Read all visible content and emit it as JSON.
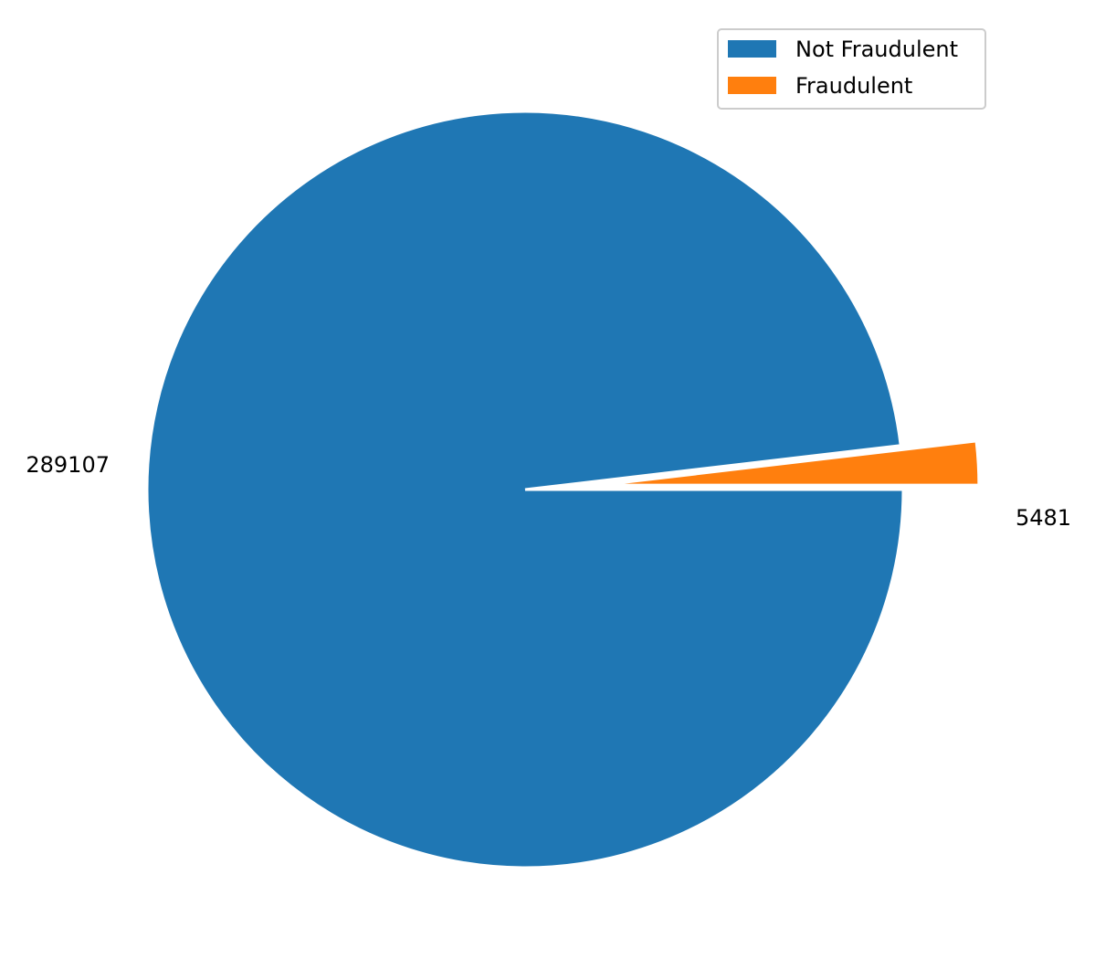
{
  "chart_data": {
    "type": "pie",
    "labels": [
      "Not Fraudulent",
      "Fraudulent"
    ],
    "values": [
      289107,
      5481
    ],
    "data_labels": [
      "289107",
      "5481"
    ],
    "colors": [
      "#1f77b4",
      "#ff7f0e"
    ],
    "exploded": [
      false,
      true
    ],
    "start_angle": 0,
    "direction": "clockwise",
    "legend": {
      "placement": "top-right",
      "entries": [
        {
          "label": "Not Fraudulent",
          "color": "#1f77b4"
        },
        {
          "label": "Fraudulent",
          "color": "#ff7f0e"
        }
      ]
    }
  }
}
